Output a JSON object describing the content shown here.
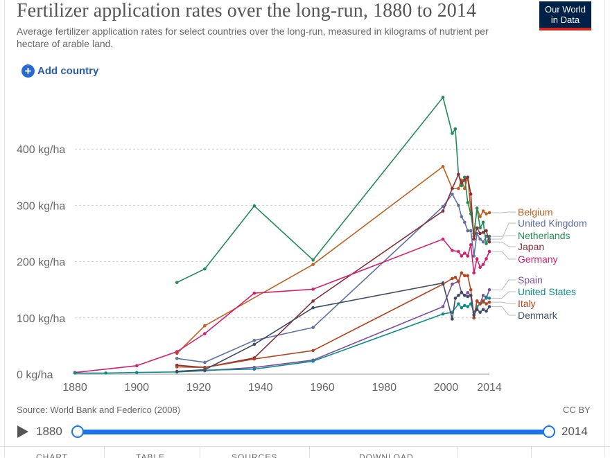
{
  "header": {
    "title": "Fertilizer application rates over the long-run, 1880 to 2014",
    "subtitle": "Average fertilizer application rates for select countries over the long-run, measured in kilograms of nutrient per hectare of arable land.",
    "logo_line1": "Our World",
    "logo_line2": "in Data",
    "add_country": "Add country"
  },
  "footer": {
    "source": "Source: World Bank and Federico (2008)",
    "license": "CC BY"
  },
  "timeline": {
    "start_label": "1880",
    "end_label": "2014",
    "start": 1880,
    "end": 2014
  },
  "tabs": [
    {
      "label": "CHART"
    },
    {
      "label": "TABLE"
    },
    {
      "label": "SOURCES"
    },
    {
      "label": "DOWNLOAD"
    }
  ],
  "chart_data": {
    "type": "line",
    "ylabel": "",
    "xlabel": "",
    "xlim": [
      1880,
      2014
    ],
    "ylim": [
      0,
      480
    ],
    "y_ticks": [
      0,
      100,
      200,
      300,
      400
    ],
    "y_tick_labels": [
      "0 kg/ha",
      "100 kg/ha",
      "200 kg/ha",
      "300 kg/ha",
      "400 kg/ha"
    ],
    "x_ticks": [
      1880,
      1900,
      1920,
      1940,
      1960,
      1980,
      2000,
      2014
    ],
    "x_tick_labels": [
      "1880",
      "1900",
      "1920",
      "1940",
      "1960",
      "1980",
      "2000",
      "2014"
    ],
    "grid": "horizontal",
    "legend": "right, inline labels",
    "series": [
      {
        "name": "Belgium",
        "color": "#c15f1c",
        "x": [
          1913,
          1922,
          1957,
          1999,
          2002,
          2004,
          2005,
          2006,
          2007,
          2008,
          2009,
          2010,
          2011,
          2012,
          2013,
          2014
        ],
        "y": [
          37,
          86,
          195,
          369,
          330,
          330,
          345,
          330,
          350,
          290,
          245,
          295,
          280,
          290,
          285,
          287
        ]
      },
      {
        "name": "United Kingdom",
        "color": "#5d6fa3",
        "x": [
          1913,
          1922,
          1938,
          1957,
          1999,
          2002,
          2004,
          2005,
          2006,
          2007,
          2008,
          2009,
          2010,
          2011,
          2012,
          2013,
          2014
        ],
        "y": [
          28,
          21,
          60,
          83,
          298,
          320,
          300,
          280,
          270,
          255,
          255,
          210,
          250,
          240,
          235,
          245,
          240
        ]
      },
      {
        "name": "Netherlands",
        "color": "#218c54",
        "x": [
          1913,
          1922,
          1938,
          1957,
          1999,
          2002,
          2003,
          2004,
          2005,
          2006,
          2007,
          2008,
          2009,
          2010,
          2011,
          2012,
          2013,
          2014
        ],
        "y": [
          163,
          187,
          299,
          203,
          492,
          428,
          436,
          355,
          335,
          350,
          305,
          285,
          250,
          295,
          260,
          270,
          232,
          245
        ]
      },
      {
        "name": "Japan",
        "color": "#883039",
        "x": [
          1913,
          1922,
          1938,
          1957,
          1999,
          2002,
          2004,
          2005,
          2006,
          2007,
          2008,
          2009,
          2010,
          2011,
          2012,
          2013,
          2014
        ],
        "y": [
          16,
          12,
          29,
          130,
          290,
          330,
          355,
          340,
          345,
          350,
          320,
          240,
          260,
          250,
          252,
          255,
          235
        ]
      },
      {
        "name": "Germany",
        "color": "#d2206d",
        "x": [
          1880,
          1900,
          1913,
          1922,
          1938,
          1957,
          1999,
          2002,
          2004,
          2005,
          2006,
          2007,
          2008,
          2009,
          2010,
          2011,
          2012,
          2013,
          2014
        ],
        "y": [
          3,
          15,
          40,
          72,
          144,
          151,
          240,
          220,
          218,
          210,
          215,
          210,
          230,
          180,
          205,
          190,
          195,
          205,
          218
        ]
      },
      {
        "name": "Spain",
        "color": "#7d4ea1",
        "x": [
          1913,
          1922,
          1938,
          1957,
          1999,
          2002,
          2004,
          2005,
          2006,
          2007,
          2008,
          2009,
          2010,
          2011,
          2012,
          2013,
          2014
        ],
        "y": [
          4,
          6,
          12,
          25,
          120,
          160,
          165,
          145,
          140,
          145,
          140,
          100,
          130,
          125,
          140,
          135,
          150
        ]
      },
      {
        "name": "United States",
        "color": "#0e8d8f",
        "x": [
          1880,
          1890,
          1900,
          1913,
          1922,
          1938,
          1957,
          1999,
          2002,
          2004,
          2005,
          2006,
          2007,
          2008,
          2009,
          2010,
          2011,
          2012,
          2013,
          2014
        ],
        "y": [
          2,
          2,
          3,
          4,
          7,
          9,
          23,
          107,
          110,
          125,
          118,
          122,
          120,
          125,
          110,
          120,
          125,
          128,
          137,
          135
        ]
      },
      {
        "name": "Italy",
        "color": "#b6431d",
        "x": [
          1913,
          1922,
          1938,
          1957,
          1999,
          2002,
          2003,
          2004,
          2005,
          2006,
          2007,
          2008,
          2009,
          2010,
          2011,
          2012,
          2013,
          2014
        ],
        "y": [
          13,
          12,
          27,
          42,
          160,
          170,
          172,
          165,
          180,
          175,
          175,
          150,
          100,
          130,
          125,
          130,
          125,
          128
        ]
      },
      {
        "name": "Denmark",
        "color": "#3f4c63",
        "x": [
          1913,
          1922,
          1938,
          1957,
          1999,
          2002,
          2003,
          2004,
          2005,
          2006,
          2007,
          2008,
          2009,
          2010,
          2011,
          2012,
          2013,
          2014
        ],
        "y": [
          5,
          8,
          53,
          118,
          162,
          98,
          135,
          140,
          145,
          140,
          138,
          140,
          105,
          115,
          110,
          115,
          112,
          120
        ]
      }
    ]
  }
}
